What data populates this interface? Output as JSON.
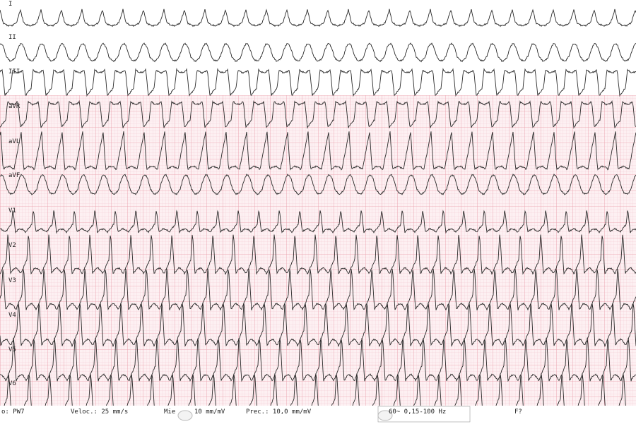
{
  "leads": [
    "I",
    "II",
    "III",
    "aVR",
    "aVL",
    "aVF",
    "V1",
    "V2",
    "V3",
    "V4",
    "V5",
    "V6"
  ],
  "footer": [
    "o: PW7",
    "Veloc.: 25 mm/s",
    "Mie",
    "10 mm/mV",
    "Prec.: 10,0 mm/mV",
    "60~ 0,15-100 Hz",
    "F?"
  ]
}
